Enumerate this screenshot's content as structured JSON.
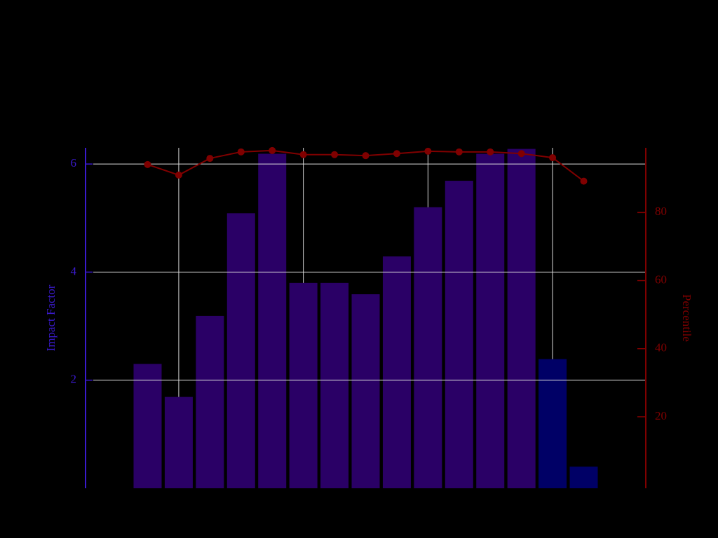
{
  "chart_data": {
    "type": "bar",
    "categories": [
      null,
      null,
      null,
      null,
      null,
      null,
      null,
      null,
      null,
      null,
      null,
      null,
      null,
      null,
      null
    ],
    "ylabel": "Impact Factor",
    "y2label": "Percentile",
    "ylim": [
      0,
      6.3
    ],
    "yticks": [
      2,
      4,
      6
    ],
    "y2lim": [
      -1,
      99
    ],
    "y2ticks": [
      20,
      40,
      60,
      80
    ],
    "grid": true,
    "series": [
      {
        "type": "bar",
        "colors": [
          "#2a0066",
          "#2a0066",
          "#2a0066",
          "#2a0066",
          "#2a0066",
          "#2a0066",
          "#2a0066",
          "#2a0066",
          "#2a0066",
          "#2a0066",
          "#2a0066",
          "#2a0066",
          "#2a0066",
          "#000066",
          "#000066"
        ],
        "values": [
          2.3,
          1.69,
          3.19,
          5.09,
          6.19,
          3.8,
          3.8,
          3.59,
          4.29,
          5.2,
          5.69,
          6.19,
          6.28,
          2.39,
          0.4
        ]
      },
      {
        "type": "line",
        "axis": "y2",
        "color": "#800000",
        "values": [
          94.1,
          91.0,
          95.9,
          97.8,
          98.2,
          97.0,
          97.0,
          96.7,
          97.3,
          98.0,
          97.8,
          97.8,
          97.3,
          96.1,
          89.2
        ]
      }
    ]
  }
}
